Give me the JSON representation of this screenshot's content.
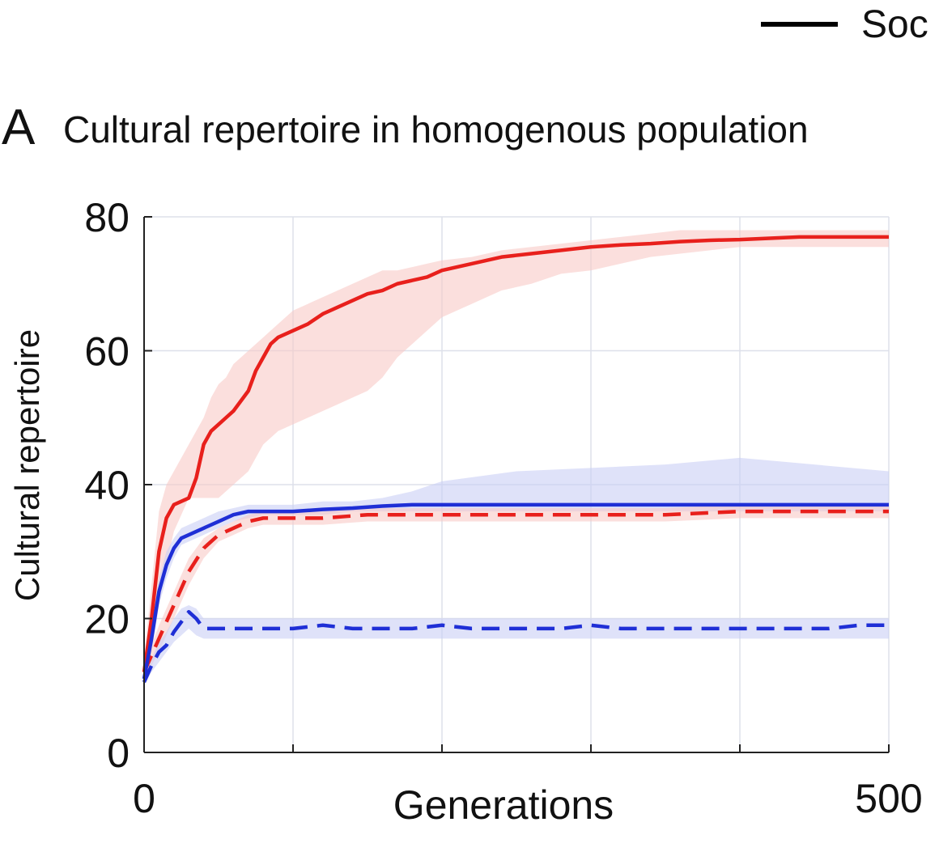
{
  "panel_letter": "A",
  "legend": {
    "entries": [
      {
        "label": "Soc",
        "line_style": "solid",
        "color": "#000000"
      }
    ],
    "placement": "top-right"
  },
  "chart_data": {
    "type": "line",
    "title": "Cultural repertoire in homogenous population",
    "xlabel": "Generations",
    "ylabel": "Cultural repertoire",
    "xlim": [
      0,
      500
    ],
    "ylim": [
      0,
      80
    ],
    "xticks": [
      0,
      100,
      200,
      300,
      400,
      500
    ],
    "xtick_labels": [
      "0",
      "",
      "",
      "",
      "",
      "500"
    ],
    "yticks": [
      0,
      20,
      40,
      60,
      80
    ],
    "ytick_labels": [
      "0",
      "20",
      "40",
      "60",
      "80"
    ],
    "grid": true,
    "series": [
      {
        "color": "#e8201c",
        "band_color": "#f8c9c6",
        "line_style": "solid",
        "x": [
          0,
          5,
          10,
          15,
          20,
          30,
          35,
          40,
          45,
          50,
          55,
          60,
          70,
          75,
          80,
          85,
          90,
          95,
          100,
          110,
          120,
          130,
          140,
          150,
          160,
          170,
          180,
          190,
          200,
          220,
          240,
          260,
          280,
          300,
          320,
          340,
          360,
          380,
          400,
          420,
          440,
          460,
          480,
          500
        ],
        "y": [
          12,
          20,
          30,
          35,
          37,
          38,
          41,
          46,
          48,
          49,
          50,
          51,
          54,
          57,
          59,
          61,
          62,
          62.5,
          63,
          64,
          65.5,
          66.5,
          67.5,
          68.5,
          69,
          70,
          70.5,
          71,
          72,
          73,
          74,
          74.5,
          75,
          75.5,
          75.8,
          76,
          76.3,
          76.5,
          76.6,
          76.8,
          77,
          77,
          77,
          77
        ],
        "band_low": [
          10,
          15,
          22,
          28,
          33,
          38,
          38,
          38,
          38,
          38,
          39,
          40,
          42,
          44,
          46,
          47,
          48,
          48.5,
          49,
          50,
          51,
          52,
          53,
          54,
          56,
          59,
          61,
          63,
          65,
          67,
          69,
          70,
          71.5,
          72,
          73,
          74,
          74.5,
          75,
          75.5,
          75.5,
          75.5,
          75.5,
          75.5,
          75.5
        ],
        "band_high": [
          14,
          25,
          36,
          40,
          42,
          46,
          48,
          50,
          53,
          55,
          56,
          58,
          60,
          61,
          62,
          63,
          64,
          65,
          66,
          67,
          68,
          69,
          70,
          71,
          72,
          72,
          72.5,
          73,
          73.5,
          74,
          75,
          75.5,
          76,
          76.5,
          77,
          77.5,
          78,
          78,
          78,
          78,
          78,
          78,
          78,
          78
        ]
      },
      {
        "color": "#1f2fd6",
        "band_color": "#c9cef5",
        "line_style": "solid",
        "x": [
          0,
          5,
          10,
          15,
          20,
          25,
          30,
          40,
          50,
          60,
          70,
          80,
          100,
          120,
          140,
          160,
          180,
          200,
          250,
          300,
          350,
          400,
          450,
          500
        ],
        "y": [
          11,
          17,
          24,
          28,
          30.5,
          32,
          32.5,
          33.5,
          34.5,
          35.5,
          36,
          36,
          36,
          36.3,
          36.5,
          36.8,
          37,
          37,
          37,
          37,
          37,
          37,
          37,
          37
        ],
        "band_low": [
          10,
          15,
          22,
          26,
          29,
          31,
          31.5,
          32.5,
          33.5,
          34.5,
          35,
          35.5,
          35.5,
          35.5,
          36,
          36,
          36,
          36,
          36,
          36,
          36,
          36,
          36,
          36
        ],
        "band_high": [
          12,
          19,
          26,
          30,
          32,
          33.5,
          34,
          35,
          36,
          36.5,
          37,
          37,
          37,
          37.5,
          37.5,
          38,
          39,
          40.5,
          42,
          42.5,
          43,
          44,
          43,
          42
        ]
      },
      {
        "color": "#e8201c",
        "band_color": "#f8c9c6",
        "line_style": "dashed",
        "x": [
          0,
          10,
          20,
          30,
          40,
          50,
          60,
          70,
          80,
          100,
          120,
          150,
          200,
          250,
          300,
          350,
          400,
          450,
          500
        ],
        "y": [
          12,
          17,
          22,
          27,
          30.5,
          32.5,
          33.5,
          34.5,
          35,
          35,
          35,
          35.5,
          35.5,
          35.5,
          35.5,
          35.5,
          36,
          36,
          36
        ],
        "band_low": [
          11,
          15,
          20,
          25,
          29,
          31.5,
          32.5,
          33.5,
          34,
          34,
          34,
          34.5,
          34.5,
          34.5,
          34.5,
          34.5,
          35,
          35,
          35
        ],
        "band_high": [
          13,
          19,
          24,
          29,
          32,
          33.5,
          34.5,
          35.5,
          36,
          36,
          36,
          36.5,
          36.5,
          36.5,
          36.5,
          36.5,
          37,
          37,
          37
        ]
      },
      {
        "color": "#1f2fd6",
        "band_color": "#c9cef5",
        "line_style": "dashed",
        "x": [
          0,
          5,
          10,
          15,
          20,
          25,
          30,
          35,
          40,
          50,
          60,
          80,
          100,
          120,
          140,
          160,
          180,
          200,
          220,
          240,
          260,
          280,
          300,
          320,
          340,
          360,
          380,
          400,
          420,
          440,
          460,
          480,
          500
        ],
        "y": [
          10.5,
          13,
          15,
          16,
          18,
          19.5,
          21,
          20,
          18.5,
          18.5,
          18.5,
          18.5,
          18.5,
          19,
          18.5,
          18.5,
          18.5,
          19,
          18.5,
          18.5,
          18.5,
          18.5,
          19,
          18.5,
          18.5,
          18.5,
          18.5,
          18.5,
          18.5,
          18.5,
          18.5,
          19,
          19
        ],
        "band_low": [
          10,
          12,
          13.5,
          15,
          16.5,
          17.5,
          18.5,
          17.5,
          17,
          17,
          17,
          17,
          17,
          17,
          17,
          17,
          17,
          17,
          17,
          17,
          17,
          17,
          17,
          17,
          17,
          17,
          17,
          17,
          17,
          17,
          17,
          17,
          17
        ],
        "band_high": [
          11,
          14,
          16.5,
          18,
          20,
          21.5,
          22,
          21.5,
          20,
          20,
          20,
          20,
          20,
          20,
          20,
          20,
          20,
          20,
          20,
          20,
          20,
          20,
          20,
          20,
          20,
          20,
          20,
          20,
          20,
          20,
          20,
          20,
          20
        ]
      }
    ]
  }
}
